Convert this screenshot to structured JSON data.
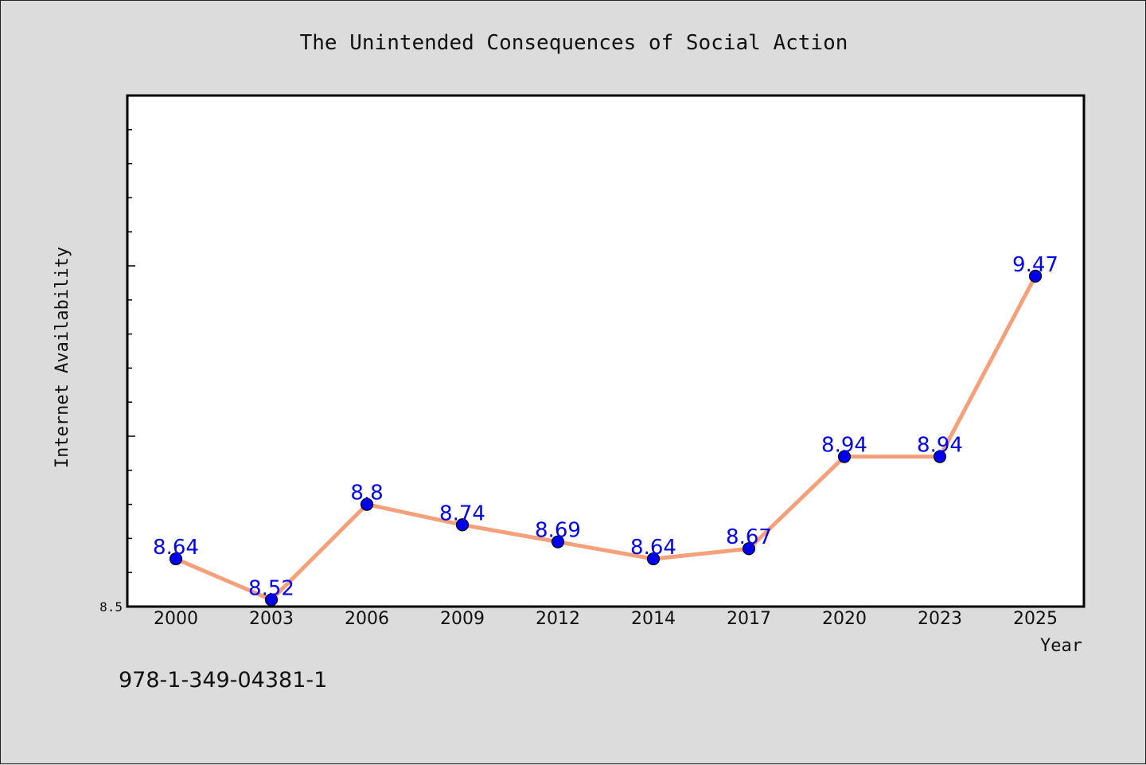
{
  "chart_data": {
    "type": "line",
    "title": "The Unintended Consequences of Social Action",
    "xlabel": "Year",
    "ylabel": "Internet Availability",
    "categories": [
      "2000",
      "2003",
      "2006",
      "2009",
      "2012",
      "2014",
      "2017",
      "2020",
      "2023",
      "2025"
    ],
    "values": [
      8.64,
      8.52,
      8.8,
      8.74,
      8.69,
      8.64,
      8.67,
      8.94,
      8.94,
      9.47
    ],
    "data_labels": [
      "8.64",
      "8.52",
      "8.8",
      "8.74",
      "8.69",
      "8.64",
      "8.67",
      "8.94",
      "8.94",
      "9.47"
    ],
    "ylim": [
      8.5,
      10.0
    ],
    "y_tick_labels": [
      "8.5"
    ],
    "grid": false,
    "line_color": "#f4a07a",
    "marker_color": "#0000ee",
    "label_color": "#0000ee"
  },
  "footer": {
    "isbn": "978-1-349-04381-1"
  }
}
